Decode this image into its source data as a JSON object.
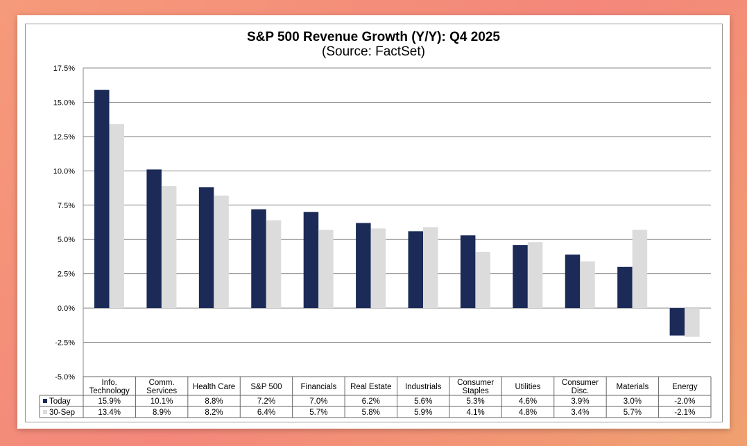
{
  "chart_data": {
    "type": "bar",
    "title": "S&P 500 Revenue Growth (Y/Y):  Q4 2025",
    "subtitle": "(Source: FactSet)",
    "xlabel": "",
    "ylabel": "",
    "ylim": [
      -5.0,
      17.5
    ],
    "yticks": [
      "17.5%",
      "15.0%",
      "12.5%",
      "10.0%",
      "7.5%",
      "5.0%",
      "2.5%",
      "0.0%",
      "-2.5%",
      "-5.0%"
    ],
    "ytick_values": [
      17.5,
      15,
      12.5,
      10,
      7.5,
      5,
      2.5,
      0,
      -2.5,
      -5
    ],
    "grid": true,
    "categories": [
      [
        "Info.",
        "Technology"
      ],
      [
        "Comm.",
        "Services"
      ],
      [
        "Health Care"
      ],
      [
        "S&P 500"
      ],
      [
        "Financials"
      ],
      [
        "Real Estate"
      ],
      [
        "Industrials"
      ],
      [
        "Consumer",
        "Staples"
      ],
      [
        "Utilities"
      ],
      [
        "Consumer",
        "Disc."
      ],
      [
        "Materials"
      ],
      [
        "Energy"
      ]
    ],
    "series": [
      {
        "name": "Today",
        "color": "#1b2a57",
        "values": [
          15.9,
          10.1,
          8.8,
          7.2,
          7.0,
          6.2,
          5.6,
          5.3,
          4.6,
          3.9,
          3.0,
          -2.0
        ],
        "labels": [
          "15.9%",
          "10.1%",
          "8.8%",
          "7.2%",
          "7.0%",
          "6.2%",
          "5.6%",
          "5.3%",
          "4.6%",
          "3.9%",
          "3.0%",
          "-2.0%"
        ]
      },
      {
        "name": "30-Sep",
        "color": "#dcdcdc",
        "values": [
          13.4,
          8.9,
          8.2,
          6.4,
          5.7,
          5.8,
          5.9,
          4.1,
          4.8,
          3.4,
          5.7,
          -2.1
        ],
        "labels": [
          "13.4%",
          "8.9%",
          "8.2%",
          "6.4%",
          "5.7%",
          "5.8%",
          "5.9%",
          "4.1%",
          "4.8%",
          "3.4%",
          "5.7%",
          "-2.1%"
        ]
      }
    ],
    "legend": "data-table-bottom"
  }
}
